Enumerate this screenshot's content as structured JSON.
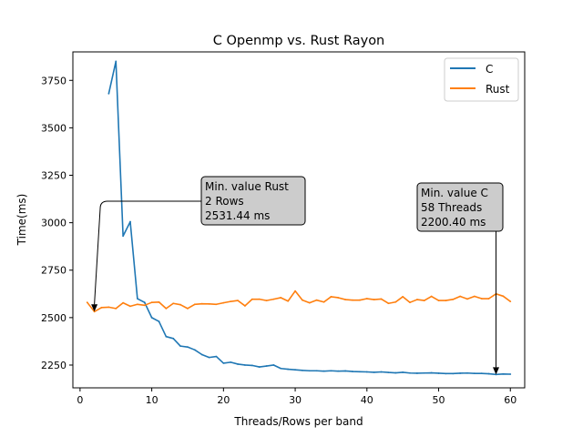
{
  "chart_data": {
    "type": "line",
    "title": "C Openmp vs. Rust Rayon",
    "xlabel": "Threads/Rows per band",
    "ylabel": "Time(ms)",
    "xlim": [
      -1,
      62
    ],
    "ylim": [
      2130,
      3900
    ],
    "xticks": [
      0,
      10,
      20,
      30,
      40,
      50,
      60
    ],
    "yticks": [
      2250,
      2500,
      2750,
      3000,
      3250,
      3500,
      3750
    ],
    "grid": false,
    "legend_position": "top-right",
    "series": [
      {
        "name": "C",
        "color": "#1f77b4",
        "x": [
          4,
          5,
          6,
          7,
          8,
          9,
          10,
          11,
          12,
          13,
          14,
          15,
          16,
          17,
          18,
          19,
          20,
          21,
          22,
          23,
          24,
          25,
          26,
          27,
          28,
          29,
          30,
          31,
          32,
          33,
          34,
          35,
          36,
          37,
          38,
          39,
          40,
          41,
          42,
          43,
          44,
          45,
          46,
          47,
          48,
          49,
          50,
          51,
          52,
          53,
          54,
          55,
          56,
          57,
          58,
          59,
          60
        ],
        "y": [
          3680,
          3850,
          2930,
          3005,
          2600,
          2580,
          2500,
          2480,
          2400,
          2390,
          2350,
          2345,
          2330,
          2305,
          2290,
          2295,
          2260,
          2265,
          2255,
          2250,
          2248,
          2240,
          2245,
          2250,
          2232,
          2228,
          2225,
          2222,
          2220,
          2220,
          2218,
          2220,
          2218,
          2219,
          2216,
          2215,
          2214,
          2212,
          2214,
          2211,
          2209,
          2212,
          2208,
          2207,
          2208,
          2209,
          2207,
          2205,
          2205,
          2207,
          2208,
          2206,
          2206,
          2204,
          2200.4,
          2203,
          2202
        ]
      },
      {
        "name": "Rust",
        "color": "#ff7f0e",
        "x": [
          1,
          2,
          3,
          4,
          5,
          6,
          7,
          8,
          9,
          10,
          11,
          12,
          13,
          14,
          15,
          16,
          17,
          18,
          19,
          20,
          21,
          22,
          23,
          24,
          25,
          26,
          27,
          28,
          29,
          30,
          31,
          32,
          33,
          34,
          35,
          36,
          37,
          38,
          39,
          40,
          41,
          42,
          43,
          44,
          45,
          46,
          47,
          48,
          49,
          50,
          51,
          52,
          53,
          54,
          55,
          56,
          57,
          58,
          59,
          60
        ],
        "y": [
          2580,
          2531.44,
          2553,
          2555,
          2548,
          2578,
          2560,
          2570,
          2565,
          2580,
          2582,
          2548,
          2575,
          2568,
          2548,
          2570,
          2573,
          2572,
          2570,
          2578,
          2585,
          2590,
          2562,
          2597,
          2597,
          2590,
          2597,
          2605,
          2587,
          2640,
          2592,
          2578,
          2592,
          2582,
          2610,
          2605,
          2595,
          2592,
          2592,
          2600,
          2595,
          2598,
          2575,
          2582,
          2610,
          2580,
          2595,
          2590,
          2612,
          2590,
          2590,
          2596,
          2612,
          2598,
          2612,
          2600,
          2600,
          2625,
          2613,
          2585
        ]
      }
    ],
    "annotations": [
      {
        "lines": [
          "Min. value Rust",
          "2 Rows",
          "2531.44 ms"
        ],
        "point": [
          2,
          2531.44
        ]
      },
      {
        "lines": [
          "Min. value C",
          "58 Threads",
          "2200.40 ms"
        ],
        "point": [
          58,
          2200.4
        ]
      }
    ]
  }
}
